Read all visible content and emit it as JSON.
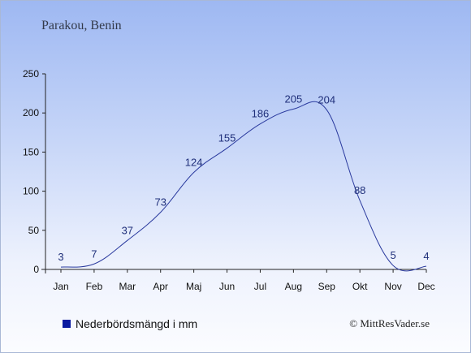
{
  "chart_data": {
    "type": "line",
    "title": "Parakou, Benin",
    "categories": [
      "Jan",
      "Feb",
      "Mar",
      "Apr",
      "Maj",
      "Jun",
      "Jul",
      "Aug",
      "Sep",
      "Okt",
      "Nov",
      "Dec"
    ],
    "series": [
      {
        "name": "Nederbördsmängd i mm",
        "values": [
          3,
          7,
          37,
          73,
          124,
          155,
          186,
          205,
          204,
          88,
          5,
          4
        ]
      }
    ],
    "ylim": [
      0,
      250
    ],
    "yticks": [
      0,
      50,
      100,
      150,
      200,
      250
    ],
    "grid": false,
    "legend": "bottom-left"
  },
  "colors": {
    "line": "#2a3a9e",
    "legend_swatch": "#0a1aa0",
    "axis": "#222222"
  },
  "copyright": "© MittResVader.se"
}
